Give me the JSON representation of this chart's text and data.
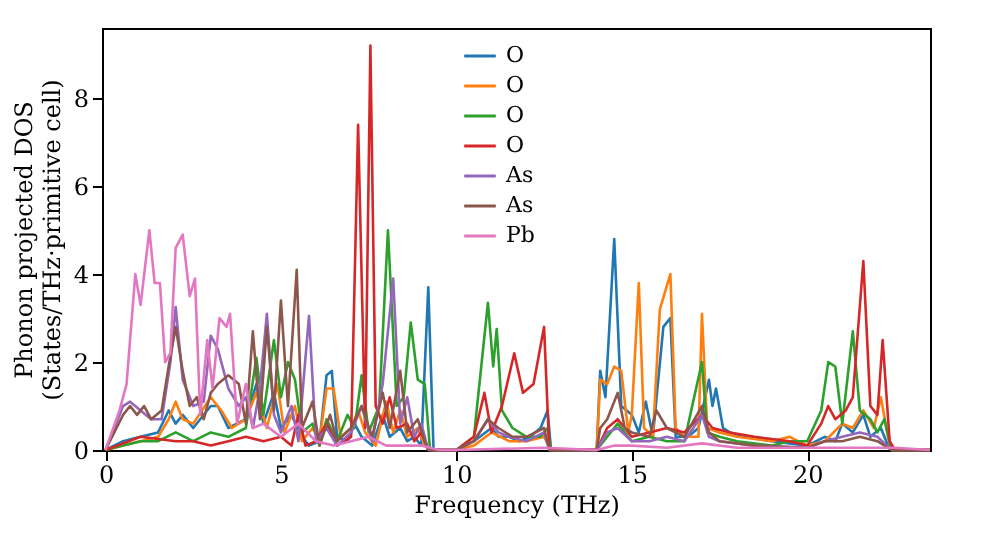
{
  "chart_data": {
    "type": "line",
    "xlabel": "Frequency (THz)",
    "ylabel": "Phonon projected DOS\n(States/THz·primitive cell)",
    "xlim": [
      -0.1,
      23.5
    ],
    "ylim": [
      0,
      9.6
    ],
    "xticks": [
      0,
      5,
      10,
      15,
      20
    ],
    "yticks": [
      0,
      2,
      4,
      6,
      8
    ],
    "grid": false,
    "legend": "top",
    "marker": "none",
    "line_style": "solid",
    "series": [
      {
        "name": "O",
        "color": "#1f77b4",
        "x": [
          0,
          0.5,
          1,
          1.5,
          1.8,
          2.0,
          2.2,
          2.5,
          3,
          3.2,
          3.5,
          4,
          4.3,
          4.5,
          4.8,
          5,
          5.3,
          5.6,
          5.8,
          6.1,
          6.3,
          6.45,
          6.6,
          6.9,
          7.1,
          7.3,
          7.6,
          7.9,
          8.1,
          8.4,
          8.6,
          8.8,
          9.0,
          9.2,
          9.35,
          10,
          10.5,
          11,
          11.2,
          11.5,
          11.8,
          12.1,
          12.4,
          12.6,
          12.7,
          14,
          14.1,
          14.25,
          14.5,
          14.7,
          15.0,
          15.2,
          15.4,
          15.6,
          15.9,
          16.1,
          16.25,
          16.6,
          16.9,
          17.2,
          17.3,
          17.4,
          17.6,
          17.8,
          18.2,
          19,
          19.5,
          20,
          20.5,
          20.8,
          21,
          21.3,
          21.6,
          21.8,
          22.1,
          22.3,
          22.5,
          23.5
        ],
        "values": [
          0,
          0.2,
          0.3,
          0.4,
          0.9,
          0.6,
          0.8,
          0.5,
          1.0,
          1.0,
          0.5,
          0.7,
          1.5,
          0.6,
          1.3,
          0.5,
          0.8,
          0.3,
          0.1,
          0.2,
          1.7,
          1.8,
          0.3,
          0.2,
          0.6,
          0.3,
          0.1,
          0.8,
          0.3,
          0.5,
          0.2,
          0.3,
          0.1,
          3.7,
          0,
          0,
          0.2,
          0.5,
          0.3,
          0.3,
          0.2,
          0.3,
          0.5,
          0.9,
          0,
          0,
          1.8,
          1.2,
          4.8,
          1.0,
          0.8,
          0.4,
          1.1,
          0.3,
          2.8,
          3.0,
          0.3,
          0.3,
          0.5,
          1.6,
          1.0,
          1.4,
          0.5,
          0.4,
          0.3,
          0.2,
          0.15,
          0.1,
          0.3,
          0.2,
          0.6,
          0.4,
          0.8,
          0.3,
          0.5,
          0.1,
          0,
          0
        ]
      },
      {
        "name": "O",
        "color": "#ff7f0e",
        "x": [
          0,
          0.5,
          1,
          1.5,
          1.8,
          2.0,
          2.2,
          2.5,
          3.0,
          3.3,
          3.6,
          4,
          4.3,
          4.6,
          4.9,
          5.1,
          5.4,
          5.6,
          5.9,
          6.1,
          6.3,
          6.5,
          6.7,
          7.0,
          7.2,
          7.4,
          7.7,
          8.0,
          8.2,
          8.4,
          8.6,
          8.9,
          9.1,
          9.3,
          10,
          10.5,
          11,
          11.5,
          12,
          12.5,
          12.7,
          14,
          14.1,
          14.3,
          14.5,
          14.7,
          14.9,
          15.0,
          15.2,
          15.35,
          15.6,
          15.8,
          16.1,
          16.25,
          16.5,
          16.9,
          17.0,
          17.15,
          17.5,
          18,
          19,
          19.5,
          20,
          20.5,
          21,
          21.3,
          21.6,
          21.9,
          22.1,
          22.3,
          22.4,
          23.5
        ],
        "values": [
          0,
          0.1,
          0.2,
          0.3,
          0.7,
          1.1,
          0.7,
          0.6,
          1.2,
          0.9,
          0.5,
          0.7,
          1.3,
          0.5,
          1.5,
          0.4,
          1.0,
          0.2,
          0.5,
          0.2,
          1.4,
          1.4,
          0.3,
          0.5,
          0.9,
          0.4,
          0.1,
          1.1,
          0.4,
          0.9,
          0.3,
          0.5,
          0.1,
          0,
          0,
          0.1,
          0.4,
          0.2,
          0.2,
          0.3,
          0,
          0,
          1.6,
          1.5,
          1.9,
          1.8,
          0.4,
          0.8,
          3.8,
          0.5,
          0.3,
          3.2,
          4.0,
          0.5,
          0.3,
          0.3,
          3.1,
          0.5,
          0.4,
          0.3,
          0.2,
          0.3,
          0.1,
          0.2,
          0.6,
          0.5,
          0.9,
          0.5,
          1.2,
          0.3,
          0,
          0
        ]
      },
      {
        "name": "O",
        "color": "#2ca02c",
        "x": [
          0,
          0.5,
          1,
          1.5,
          2,
          2.5,
          3,
          3.5,
          4,
          4.3,
          4.5,
          4.8,
          5.0,
          5.2,
          5.4,
          5.6,
          5.9,
          6.1,
          6.3,
          6.6,
          6.9,
          7.1,
          7.3,
          7.5,
          7.8,
          8.05,
          8.3,
          8.5,
          8.7,
          8.9,
          9.1,
          9.25,
          10,
          10.5,
          10.9,
          11.05,
          11.15,
          11.3,
          11.6,
          12,
          12.4,
          12.6,
          12.7,
          14,
          14.3,
          14.6,
          15,
          15.5,
          16,
          16.5,
          17.0,
          17.15,
          17.5,
          18,
          19,
          19.5,
          20,
          20.4,
          20.6,
          20.8,
          21.0,
          21.3,
          21.5,
          21.8,
          22.0,
          22.2,
          22.4,
          23.5
        ],
        "values": [
          0,
          0.1,
          0.2,
          0.2,
          0.4,
          0.2,
          0.4,
          0.3,
          0.5,
          2.1,
          0.8,
          2.5,
          1.2,
          2.0,
          1.6,
          0.4,
          0.6,
          0.1,
          0.7,
          0.2,
          0.8,
          0.5,
          1.7,
          0.4,
          1.0,
          5.0,
          1.0,
          1.2,
          2.9,
          1.6,
          1.5,
          0,
          0,
          0.3,
          3.35,
          1.9,
          2.75,
          0.9,
          0.5,
          0.3,
          0.3,
          0.5,
          0,
          0,
          0.3,
          0.6,
          0.2,
          0.3,
          0.2,
          0.2,
          2.0,
          0.4,
          0.3,
          0.2,
          0.1,
          0.2,
          0.2,
          0.9,
          2.0,
          1.9,
          0.6,
          2.7,
          0.9,
          0.7,
          0.4,
          0.7,
          0,
          0
        ]
      },
      {
        "name": "O",
        "color": "#d62728",
        "x": [
          0,
          0.5,
          1,
          1.5,
          2,
          2.5,
          3,
          3.5,
          4,
          4.5,
          5,
          5.3,
          5.5,
          5.7,
          6,
          6.3,
          6.6,
          7.0,
          7.2,
          7.4,
          7.55,
          7.7,
          7.9,
          8.1,
          8.3,
          8.6,
          8.8,
          9.0,
          9.2,
          10,
          10.5,
          10.8,
          11.0,
          11.3,
          11.65,
          11.9,
          12.2,
          12.5,
          12.65,
          14,
          14.3,
          14.6,
          15,
          15.5,
          16,
          16.5,
          17,
          17.3,
          17.8,
          18.5,
          19.5,
          20,
          20.4,
          20.6,
          20.8,
          21.1,
          21.3,
          21.6,
          21.8,
          22.0,
          22.15,
          22.35,
          22.5,
          23.5
        ],
        "values": [
          0,
          0.15,
          0.3,
          0.25,
          0.2,
          0.2,
          0.1,
          0.2,
          0.3,
          0.2,
          0.3,
          0.1,
          0.8,
          0.1,
          0.2,
          0.6,
          0.1,
          0.3,
          7.4,
          0.5,
          9.2,
          1.0,
          0.6,
          1.2,
          0.5,
          0.6,
          0.2,
          0.4,
          0,
          0,
          0.3,
          1.3,
          0.4,
          1.0,
          2.2,
          1.3,
          1.5,
          2.8,
          0,
          0,
          0.5,
          0.7,
          0.3,
          0.4,
          0.5,
          0.4,
          0.8,
          0.5,
          0.4,
          0.3,
          0.2,
          0.1,
          0.6,
          1.0,
          0.7,
          0.9,
          1.2,
          4.3,
          1.0,
          0.8,
          2.5,
          0.2,
          0,
          0
        ]
      },
      {
        "name": "As",
        "color": "#9467bd",
        "x": [
          0,
          0.5,
          0.7,
          1.0,
          1.3,
          1.6,
          1.85,
          2.0,
          2.2,
          2.5,
          2.8,
          3.0,
          3.2,
          3.5,
          3.8,
          4.0,
          4.2,
          4.4,
          4.6,
          4.8,
          5.0,
          5.3,
          5.5,
          5.8,
          6.0,
          6.3,
          6.6,
          7.0,
          7.3,
          7.6,
          7.9,
          8.2,
          8.4,
          8.6,
          8.8,
          9.0,
          9.2,
          10,
          10.5,
          10.9,
          11.2,
          11.5,
          12,
          12.5,
          12.65,
          14,
          14.3,
          14.6,
          15,
          15.5,
          16,
          16.5,
          17,
          17.2,
          17.5,
          18.5,
          20,
          20.5,
          21,
          21.5,
          22,
          22.4,
          23.5
        ],
        "values": [
          0,
          1.0,
          1.1,
          0.9,
          0.7,
          0.7,
          2.0,
          3.25,
          1.6,
          1.0,
          1.1,
          2.6,
          2.3,
          1.4,
          1.0,
          1.2,
          0.5,
          1.4,
          3.1,
          0.8,
          0.4,
          1.0,
          0.2,
          3.05,
          0.2,
          0.5,
          0.1,
          0.4,
          1.0,
          0.2,
          1.5,
          3.9,
          0.6,
          1.2,
          0.3,
          0.6,
          0,
          0,
          0.2,
          0.7,
          0.4,
          0.3,
          0.2,
          0.4,
          0,
          0,
          0.4,
          0.5,
          0.2,
          0.2,
          0.3,
          0.2,
          0.8,
          0.3,
          0.2,
          0.1,
          0.05,
          0.2,
          0.3,
          0.4,
          0.3,
          0,
          0
        ]
      },
      {
        "name": "As",
        "color": "#8c564b",
        "x": [
          0,
          0.5,
          0.7,
          0.9,
          1.1,
          1.3,
          1.6,
          1.8,
          2.0,
          2.2,
          2.4,
          2.6,
          2.8,
          3.0,
          3.2,
          3.5,
          3.8,
          4.0,
          4.2,
          4.4,
          4.6,
          4.8,
          5.0,
          5.2,
          5.45,
          5.6,
          5.9,
          6.1,
          6.4,
          6.6,
          7.0,
          7.3,
          7.6,
          7.9,
          8.1,
          8.4,
          8.6,
          8.9,
          9.1,
          9.2,
          10,
          10.5,
          10.9,
          11.2,
          11.6,
          12,
          12.5,
          12.65,
          14,
          14.1,
          14.3,
          14.6,
          14.8,
          15.0,
          15.5,
          15.7,
          16.0,
          16.5,
          17.0,
          17.2,
          17.5,
          18.5,
          20,
          20.5,
          21,
          21.5,
          22,
          22.4,
          23.5
        ],
        "values": [
          0,
          0.8,
          1.0,
          0.8,
          1.0,
          0.7,
          0.9,
          1.9,
          2.8,
          1.8,
          1.0,
          1.2,
          0.7,
          1.3,
          1.5,
          1.7,
          1.5,
          0.6,
          2.7,
          0.7,
          2.8,
          0.9,
          3.4,
          1.0,
          4.1,
          0.5,
          1.1,
          0.1,
          0.8,
          0.2,
          0.5,
          1.0,
          0.3,
          1.3,
          0.5,
          1.8,
          0.4,
          0.7,
          0.2,
          0,
          0,
          0.2,
          0.7,
          0.5,
          0.3,
          0.3,
          0.5,
          0,
          0,
          0.5,
          0.7,
          1.3,
          0.5,
          0.4,
          0.3,
          0.9,
          0.5,
          0.3,
          1.0,
          0.4,
          0.2,
          0.1,
          0.05,
          0.2,
          0.2,
          0.3,
          0.2,
          0,
          0
        ]
      },
      {
        "name": "Pb",
        "color": "#e377c2",
        "x": [
          0,
          0.4,
          0.6,
          0.85,
          1.0,
          1.25,
          1.4,
          1.55,
          1.7,
          1.85,
          2.0,
          2.2,
          2.4,
          2.55,
          2.7,
          2.9,
          3.05,
          3.25,
          3.45,
          3.55,
          3.75,
          4.0,
          4.2,
          4.5,
          5.0,
          5.5,
          6.0,
          6.5,
          7.0,
          7.5,
          8.0,
          9.0,
          9.5,
          10,
          12.5,
          14,
          14.5,
          15,
          16,
          17,
          18,
          20,
          22.5,
          23.5
        ],
        "values": [
          0,
          0.9,
          1.5,
          4.0,
          3.3,
          5.0,
          3.8,
          3.8,
          2.0,
          2.2,
          4.6,
          4.9,
          3.5,
          3.9,
          0.8,
          2.5,
          1.4,
          3.0,
          2.8,
          3.1,
          0.6,
          1.5,
          0.5,
          0.6,
          0.3,
          0.6,
          0.2,
          0.1,
          0.2,
          0.3,
          0.1,
          0.1,
          0,
          0,
          0.05,
          0,
          0.1,
          0.1,
          0.05,
          0.15,
          0.05,
          0.05,
          0.05,
          0
        ]
      }
    ]
  }
}
